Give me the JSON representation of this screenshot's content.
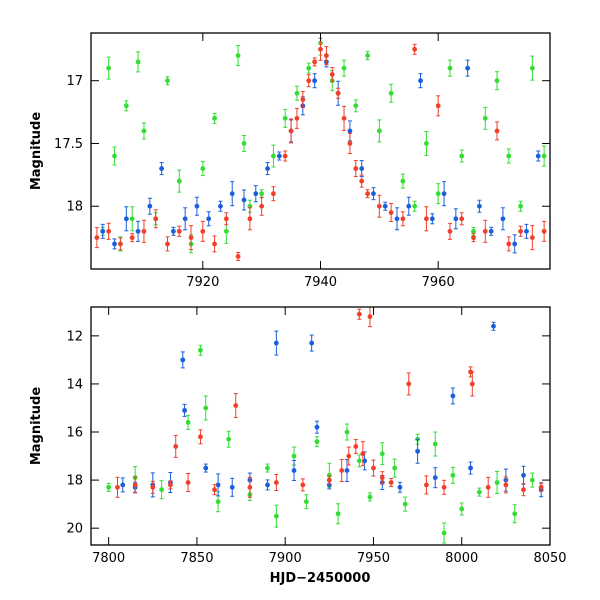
{
  "colors": {
    "green": "#33dd33",
    "blue": "#1a5fdc",
    "red": "#f0402a",
    "axis": "#000000"
  },
  "chart_data": [
    {
      "type": "scatter",
      "panel": "top",
      "title": "",
      "xlabel": "",
      "ylabel": "Magnitude",
      "xlim": [
        7901,
        7979
      ],
      "ylim": [
        18.5,
        16.62
      ],
      "y_inverted": true,
      "x_ticks": [
        7920,
        7940,
        7960
      ],
      "y_ticks": [
        17,
        17.5,
        18
      ],
      "x_tick_labels": [
        "7920",
        "7940",
        "7960"
      ],
      "y_tick_labels": [
        "17",
        "17.5",
        "18"
      ],
      "error_bars": true,
      "series": [
        {
          "color": "#33dd33",
          "points": [
            [
              7903,
              18.2
            ],
            [
              7904,
              16.9
            ],
            [
              7905,
              17.6
            ],
            [
              7906,
              18.3
            ],
            [
              7907,
              17.2
            ],
            [
              7908,
              18.1
            ],
            [
              7909,
              16.85
            ],
            [
              7910,
              17.4
            ],
            [
              7912,
              18.1
            ],
            [
              7914,
              17.0
            ],
            [
              7916,
              17.8
            ],
            [
              7918,
              18.3
            ],
            [
              7920,
              17.7
            ],
            [
              7922,
              17.3
            ],
            [
              7924,
              18.2
            ],
            [
              7926,
              16.8
            ],
            [
              7927,
              17.5
            ],
            [
              7928,
              18.0
            ],
            [
              7930,
              17.9
            ],
            [
              7932,
              17.6
            ],
            [
              7934,
              17.3
            ],
            [
              7936,
              17.1
            ],
            [
              7938,
              16.9
            ],
            [
              7940,
              16.7
            ],
            [
              7942,
              17.0
            ],
            [
              7944,
              16.9
            ],
            [
              7946,
              17.2
            ],
            [
              7948,
              16.8
            ],
            [
              7950,
              17.4
            ],
            [
              7952,
              17.1
            ],
            [
              7954,
              17.8
            ],
            [
              7956,
              18.0
            ],
            [
              7958,
              17.5
            ],
            [
              7960,
              17.9
            ],
            [
              7962,
              16.9
            ],
            [
              7964,
              17.6
            ],
            [
              7966,
              18.2
            ],
            [
              7968,
              17.3
            ],
            [
              7970,
              17.0
            ],
            [
              7972,
              17.6
            ],
            [
              7974,
              18.0
            ],
            [
              7976,
              16.9
            ],
            [
              7978,
              17.6
            ]
          ]
        },
        {
          "color": "#1a5fdc",
          "points": [
            [
              7903,
              18.2
            ],
            [
              7905,
              18.3
            ],
            [
              7907,
              18.1
            ],
            [
              7909,
              18.2
            ],
            [
              7911,
              18.0
            ],
            [
              7913,
              17.7
            ],
            [
              7915,
              18.2
            ],
            [
              7917,
              18.1
            ],
            [
              7919,
              18.0
            ],
            [
              7921,
              18.1
            ],
            [
              7923,
              18.0
            ],
            [
              7925,
              17.9
            ],
            [
              7927,
              17.95
            ],
            [
              7929,
              17.9
            ],
            [
              7931,
              17.7
            ],
            [
              7933,
              17.6
            ],
            [
              7935,
              17.4
            ],
            [
              7937,
              17.2
            ],
            [
              7939,
              17.0
            ],
            [
              7941,
              16.85
            ],
            [
              7943,
              17.1
            ],
            [
              7945,
              17.4
            ],
            [
              7947,
              17.7
            ],
            [
              7949,
              17.9
            ],
            [
              7951,
              18.0
            ],
            [
              7953,
              18.1
            ],
            [
              7955,
              18.0
            ],
            [
              7957,
              17.0
            ],
            [
              7959,
              18.1
            ],
            [
              7961,
              17.9
            ],
            [
              7963,
              18.1
            ],
            [
              7965,
              16.9
            ],
            [
              7967,
              18.0
            ],
            [
              7969,
              18.2
            ],
            [
              7971,
              18.1
            ],
            [
              7973,
              18.3
            ],
            [
              7975,
              18.2
            ],
            [
              7977,
              17.6
            ]
          ]
        },
        {
          "color": "#f0402a",
          "points": [
            [
              7902,
              18.25
            ],
            [
              7904,
              18.2
            ],
            [
              7906,
              18.3
            ],
            [
              7908,
              18.25
            ],
            [
              7910,
              18.2
            ],
            [
              7912,
              18.1
            ],
            [
              7914,
              18.3
            ],
            [
              7916,
              18.2
            ],
            [
              7918,
              18.25
            ],
            [
              7920,
              18.2
            ],
            [
              7922,
              18.3
            ],
            [
              7924,
              18.1
            ],
            [
              7926,
              18.4
            ],
            [
              7928,
              18.1
            ],
            [
              7930,
              18.0
            ],
            [
              7932,
              17.9
            ],
            [
              7934,
              17.6
            ],
            [
              7935,
              17.4
            ],
            [
              7936,
              17.3
            ],
            [
              7937,
              17.15
            ],
            [
              7938,
              17.0
            ],
            [
              7939,
              16.85
            ],
            [
              7940,
              16.75
            ],
            [
              7941,
              16.8
            ],
            [
              7942,
              16.95
            ],
            [
              7943,
              17.1
            ],
            [
              7944,
              17.3
            ],
            [
              7945,
              17.5
            ],
            [
              7946,
              17.7
            ],
            [
              7947,
              17.8
            ],
            [
              7948,
              17.9
            ],
            [
              7950,
              18.0
            ],
            [
              7952,
              18.05
            ],
            [
              7954,
              18.1
            ],
            [
              7956,
              16.75
            ],
            [
              7958,
              18.1
            ],
            [
              7960,
              17.2
            ],
            [
              7962,
              18.2
            ],
            [
              7964,
              18.1
            ],
            [
              7966,
              18.25
            ],
            [
              7968,
              18.2
            ],
            [
              7970,
              17.4
            ],
            [
              7972,
              18.3
            ],
            [
              7974,
              18.2
            ],
            [
              7976,
              18.25
            ],
            [
              7978,
              18.2
            ]
          ]
        }
      ]
    },
    {
      "type": "scatter",
      "panel": "bottom",
      "title": "",
      "xlabel": "HJD−2450000",
      "ylabel": "Magnitude",
      "xlim": [
        7790,
        8050
      ],
      "ylim": [
        20.7,
        10.8
      ],
      "y_inverted": true,
      "x_ticks": [
        7800,
        7850,
        7900,
        7950,
        8000,
        8050
      ],
      "y_ticks": [
        12,
        14,
        16,
        18,
        20
      ],
      "x_tick_labels": [
        "7800",
        "7850",
        "7900",
        "7950",
        "8000",
        "8050"
      ],
      "y_tick_labels": [
        "12",
        "14",
        "16",
        "18",
        "20"
      ],
      "error_bars": true,
      "series": [
        {
          "color": "#33dd33",
          "points": [
            [
              7800,
              18.3
            ],
            [
              7815,
              17.9
            ],
            [
              7830,
              18.4
            ],
            [
              7845,
              15.6
            ],
            [
              7852,
              12.6
            ],
            [
              7855,
              15.0
            ],
            [
              7862,
              18.9
            ],
            [
              7868,
              16.3
            ],
            [
              7880,
              18.6
            ],
            [
              7890,
              17.5
            ],
            [
              7895,
              19.5
            ],
            [
              7905,
              17.0
            ],
            [
              7912,
              18.9
            ],
            [
              7918,
              16.4
            ],
            [
              7925,
              17.8
            ],
            [
              7930,
              19.4
            ],
            [
              7935,
              16.0
            ],
            [
              7942,
              17.2
            ],
            [
              7948,
              18.7
            ],
            [
              7955,
              16.9
            ],
            [
              7962,
              17.5
            ],
            [
              7968,
              19.0
            ],
            [
              7975,
              16.3
            ],
            [
              7985,
              16.5
            ],
            [
              7990,
              20.2
            ],
            [
              7995,
              17.8
            ],
            [
              8000,
              19.2
            ],
            [
              8010,
              18.5
            ],
            [
              8020,
              18.1
            ],
            [
              8030,
              19.4
            ],
            [
              8040,
              18.0
            ]
          ]
        },
        {
          "color": "#1a5fdc",
          "points": [
            [
              7808,
              18.2
            ],
            [
              7815,
              18.3
            ],
            [
              7825,
              18.2
            ],
            [
              7835,
              18.1
            ],
            [
              7842,
              13.0
            ],
            [
              7843,
              15.1
            ],
            [
              7855,
              17.5
            ],
            [
              7862,
              18.2
            ],
            [
              7870,
              18.3
            ],
            [
              7880,
              18.0
            ],
            [
              7890,
              18.2
            ],
            [
              7895,
              12.3
            ],
            [
              7905,
              17.6
            ],
            [
              7915,
              12.3
            ],
            [
              7918,
              15.8
            ],
            [
              7925,
              18.2
            ],
            [
              7935,
              17.6
            ],
            [
              7945,
              17.2
            ],
            [
              7955,
              18.1
            ],
            [
              7965,
              18.3
            ],
            [
              7975,
              16.8
            ],
            [
              7985,
              17.9
            ],
            [
              7995,
              14.5
            ],
            [
              8005,
              17.5
            ],
            [
              8018,
              11.6
            ],
            [
              8025,
              18.0
            ],
            [
              8035,
              17.8
            ],
            [
              8045,
              18.4
            ]
          ]
        },
        {
          "color": "#f0402a",
          "points": [
            [
              7805,
              18.3
            ],
            [
              7815,
              18.2
            ],
            [
              7825,
              18.3
            ],
            [
              7835,
              18.2
            ],
            [
              7838,
              16.6
            ],
            [
              7845,
              18.1
            ],
            [
              7852,
              16.2
            ],
            [
              7860,
              18.4
            ],
            [
              7872,
              14.9
            ],
            [
              7880,
              18.3
            ],
            [
              7895,
              18.1
            ],
            [
              7910,
              18.2
            ],
            [
              7925,
              18.0
            ],
            [
              7932,
              17.6
            ],
            [
              7936,
              17.0
            ],
            [
              7940,
              16.6
            ],
            [
              7942,
              11.1
            ],
            [
              7944,
              16.9
            ],
            [
              7948,
              11.2
            ],
            [
              7950,
              17.5
            ],
            [
              7955,
              17.9
            ],
            [
              7960,
              18.1
            ],
            [
              7970,
              14.0
            ],
            [
              7980,
              18.2
            ],
            [
              7990,
              18.3
            ],
            [
              8005,
              13.5
            ],
            [
              8006,
              14.0
            ],
            [
              8015,
              18.3
            ],
            [
              8025,
              18.2
            ],
            [
              8035,
              18.4
            ],
            [
              8045,
              18.3
            ]
          ]
        }
      ]
    }
  ]
}
